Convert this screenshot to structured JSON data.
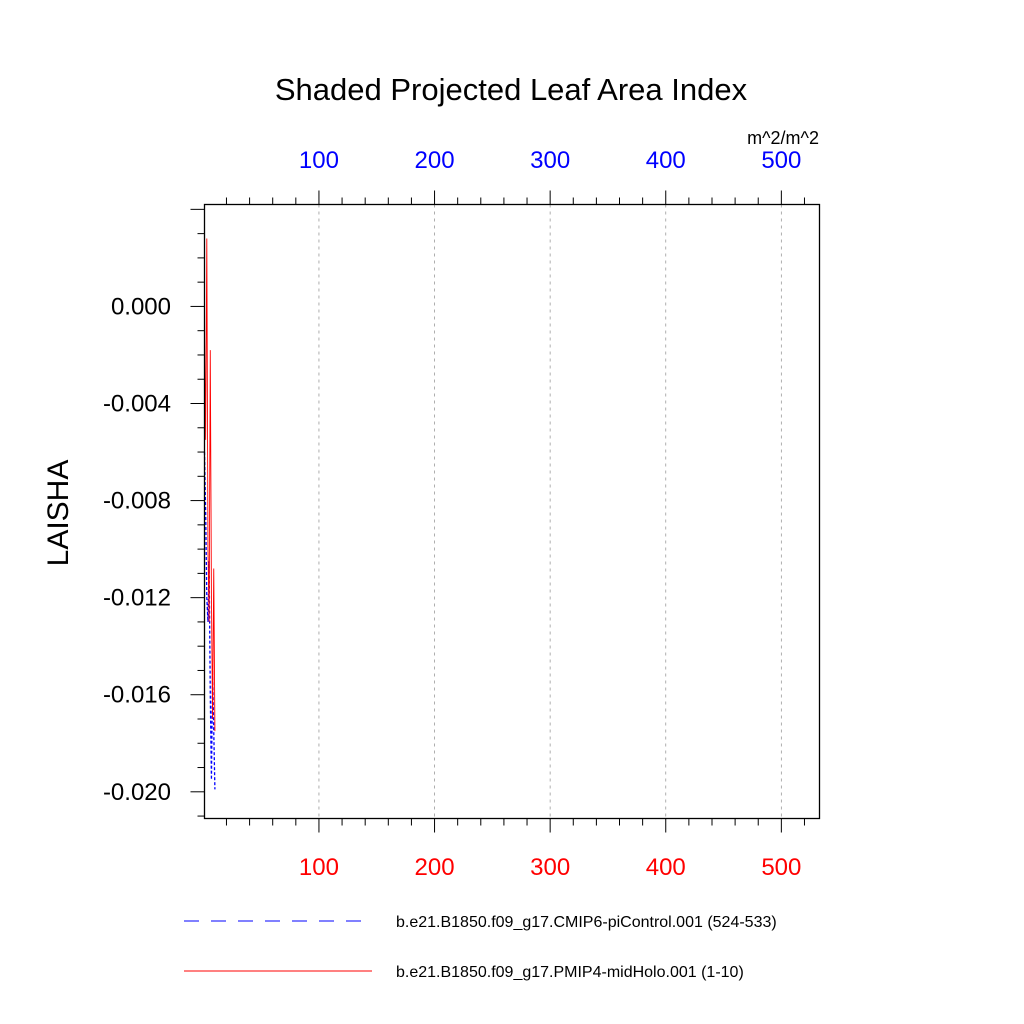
{
  "chart_data": {
    "type": "line",
    "title": "Shaded Projected Leaf Area Index",
    "units": "m^2/m^2",
    "ylabel": "LAISHA",
    "xlabel": "",
    "xlim": [
      1,
      533
    ],
    "ylim": [
      -0.0211,
      0.0042
    ],
    "grid": "vertical dashed at x ticks",
    "x_top_axis": {
      "ticks": [
        100,
        200,
        300,
        400,
        500
      ],
      "labels": [
        "100",
        "200",
        "300",
        "400",
        "500"
      ],
      "color": "#0000ff"
    },
    "x_bottom_axis": {
      "ticks": [
        100,
        200,
        300,
        400,
        500
      ],
      "labels": [
        "100",
        "200",
        "300",
        "400",
        "500"
      ],
      "color": "#ff0000"
    },
    "y_ticks": [
      0.0,
      -0.004,
      -0.008,
      -0.012,
      -0.016,
      -0.02
    ],
    "y_tick_labels": [
      "0.000",
      "-0.004",
      "-0.008",
      "-0.012",
      "-0.016",
      "-0.020"
    ],
    "legend_placement": "below",
    "series": [
      {
        "name": "b.e21.B1850.f09_g17.CMIP6-piControl.001 (524-533)",
        "color": "#0000ff",
        "dash": "dashed",
        "x": [
          1,
          2,
          3,
          4,
          5,
          6,
          7,
          8,
          9,
          10
        ],
        "y": [
          -0.006,
          -0.0085,
          -0.012,
          -0.013,
          -0.0105,
          -0.016,
          -0.0195,
          -0.015,
          -0.0175,
          -0.0199
        ]
      },
      {
        "name": "b.e21.B1850.f09_g17.PMIP4-midHolo.001 (1-10)",
        "color": "#ff0000",
        "dash": "solid",
        "x": [
          1,
          2,
          3,
          4,
          5,
          6,
          7,
          8,
          9,
          10
        ],
        "y": [
          -0.001,
          -0.0055,
          0.0028,
          -0.01,
          -0.013,
          -0.0018,
          -0.012,
          -0.017,
          -0.0108,
          -0.0175
        ]
      }
    ]
  }
}
